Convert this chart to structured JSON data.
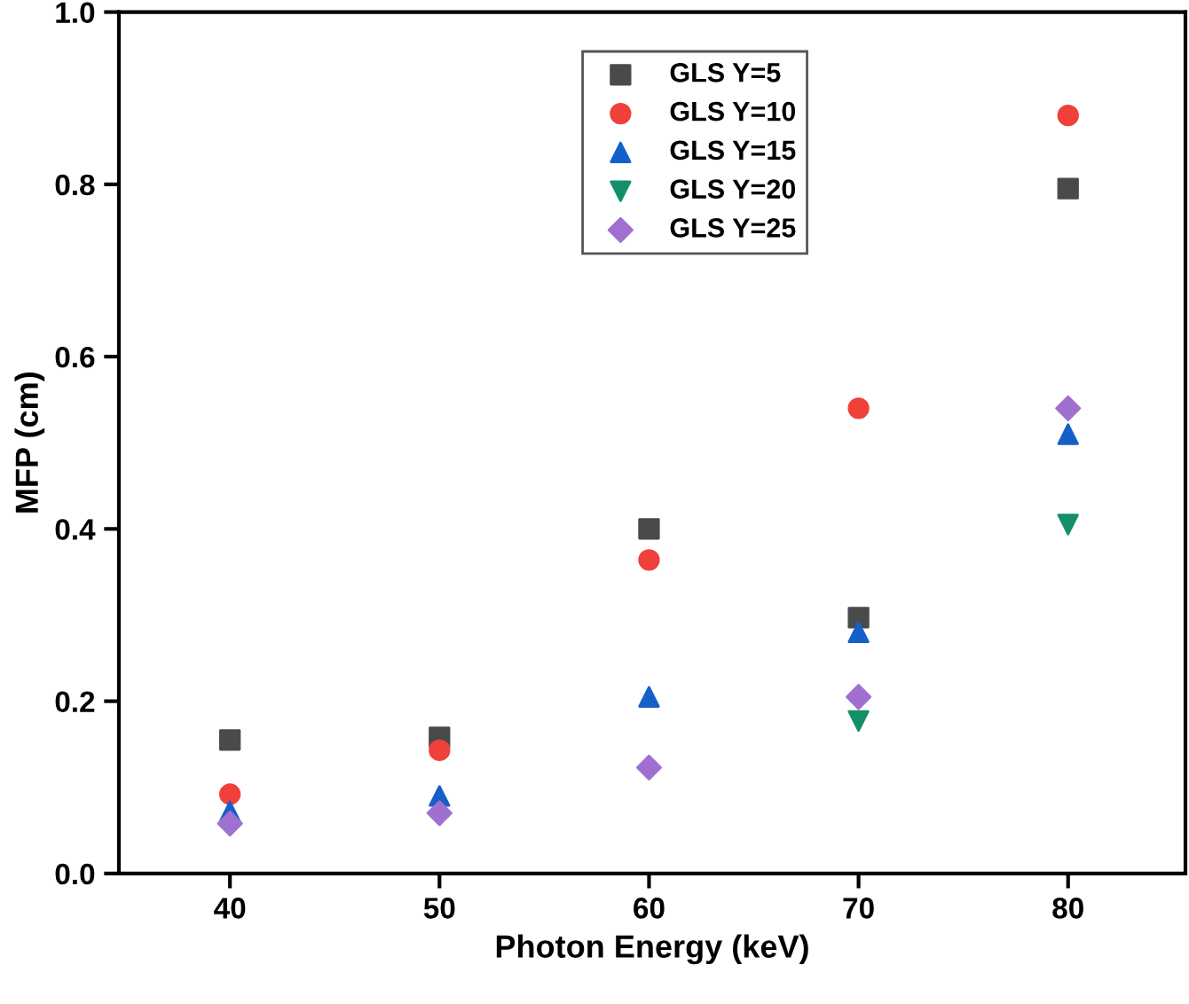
{
  "chart_data": {
    "type": "scatter",
    "xlabel": "Photon Energy (keV)",
    "ylabel": "MFP (cm)",
    "x": [
      40,
      50,
      60,
      70,
      80
    ],
    "series": [
      {
        "name": "GLS Y=5",
        "color": "#4a4a4a",
        "marker": "square",
        "values": [
          0.155,
          0.158,
          0.4,
          0.297,
          0.795
        ]
      },
      {
        "name": "GLS Y=10",
        "color": "#f0403a",
        "marker": "circle",
        "values": [
          0.092,
          0.143,
          0.364,
          0.54,
          0.88
        ]
      },
      {
        "name": "GLS Y=15",
        "color": "#1560c8",
        "marker": "triangle",
        "values": [
          0.072,
          0.09,
          0.205,
          0.28,
          0.51
        ]
      },
      {
        "name": "GLS Y=20",
        "color": "#13906a",
        "marker": "triangle_down",
        "values": [
          null,
          null,
          null,
          0.177,
          0.405
        ]
      },
      {
        "name": "GLS Y=25",
        "color": "#a070d0",
        "marker": "diamond",
        "values": [
          0.058,
          0.07,
          0.123,
          0.205,
          0.54
        ]
      }
    ],
    "xlim": [
      34.7,
      85.6
    ],
    "xticks": [
      40,
      50,
      60,
      70,
      80
    ],
    "ylim": [
      0.0,
      1.0
    ],
    "yticks": [
      {
        "value": 0,
        "label": "0.0"
      },
      {
        "value": 0.2,
        "label": "0.2"
      },
      {
        "value": 0.4,
        "label": "0.4"
      },
      {
        "value": 0.6,
        "label": "0.6"
      },
      {
        "value": 0.8,
        "label": "0.8"
      },
      {
        "value": 1,
        "label": "1.0"
      }
    ],
    "grid": false,
    "legend": "top center"
  }
}
